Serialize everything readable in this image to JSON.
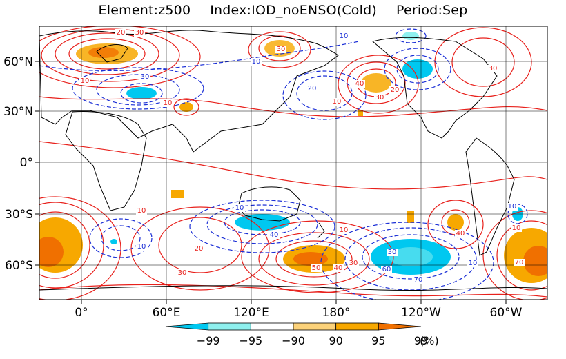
{
  "title": {
    "element": "Element:z500",
    "index": "Index:IOD_noENSO(Cold)",
    "period": "Period:Sep"
  },
  "map": {
    "projection": "equirectangular",
    "lon_range": [
      -30,
      325
    ],
    "lat_range": [
      -80,
      85
    ],
    "gridlines": true,
    "lon_ticks": [
      "0°",
      "60°E",
      "120°E",
      "180°",
      "120°W",
      "60°W"
    ],
    "lat_ticks": [
      "60°N",
      "30°N",
      "0°",
      "30°S",
      "60°S"
    ],
    "positive_contour_color": "#e8211c",
    "negative_contour_color": "#1b2fd6"
  },
  "contour_labels": [
    {
      "text": "20",
      "color": "red"
    },
    {
      "text": "30",
      "color": "red"
    },
    {
      "text": "10",
      "color": "blue"
    },
    {
      "text": "30",
      "color": "red"
    },
    {
      "text": "10",
      "color": "red"
    },
    {
      "text": "30",
      "color": "blue"
    },
    {
      "text": "20",
      "color": "blue"
    },
    {
      "text": "40",
      "color": "red"
    },
    {
      "text": "20",
      "color": "red"
    },
    {
      "text": "30",
      "color": "red"
    },
    {
      "text": "10",
      "color": "red"
    },
    {
      "text": "10",
      "color": "blue"
    },
    {
      "text": "30",
      "color": "red"
    },
    {
      "text": "10",
      "color": "red"
    },
    {
      "text": "20",
      "color": "red"
    },
    {
      "text": "10",
      "color": "red"
    },
    {
      "text": "30",
      "color": "red"
    },
    {
      "text": "10",
      "color": "blue"
    },
    {
      "text": "40",
      "color": "blue"
    },
    {
      "text": "10",
      "color": "blue"
    },
    {
      "text": "50",
      "color": "red"
    },
    {
      "text": "40",
      "color": "red"
    },
    {
      "text": "30",
      "color": "red"
    },
    {
      "text": "30",
      "color": "blue"
    },
    {
      "text": "60",
      "color": "blue"
    },
    {
      "text": "70",
      "color": "blue"
    },
    {
      "text": "40",
      "color": "red"
    },
    {
      "text": "10",
      "color": "red"
    },
    {
      "text": "10",
      "color": "blue"
    },
    {
      "text": "70",
      "color": "red"
    },
    {
      "text": "10",
      "color": "blue"
    },
    {
      "text": "10",
      "color": "red"
    }
  ],
  "colorbar": {
    "labels": [
      "−99",
      "−95",
      "−90",
      "90",
      "95",
      "99"
    ],
    "unit": "(%)",
    "colors": [
      "#00c8f0",
      "#8ef0ee",
      "#ffffff",
      "#fcd27a",
      "#f7a800",
      "#f07000"
    ]
  }
}
